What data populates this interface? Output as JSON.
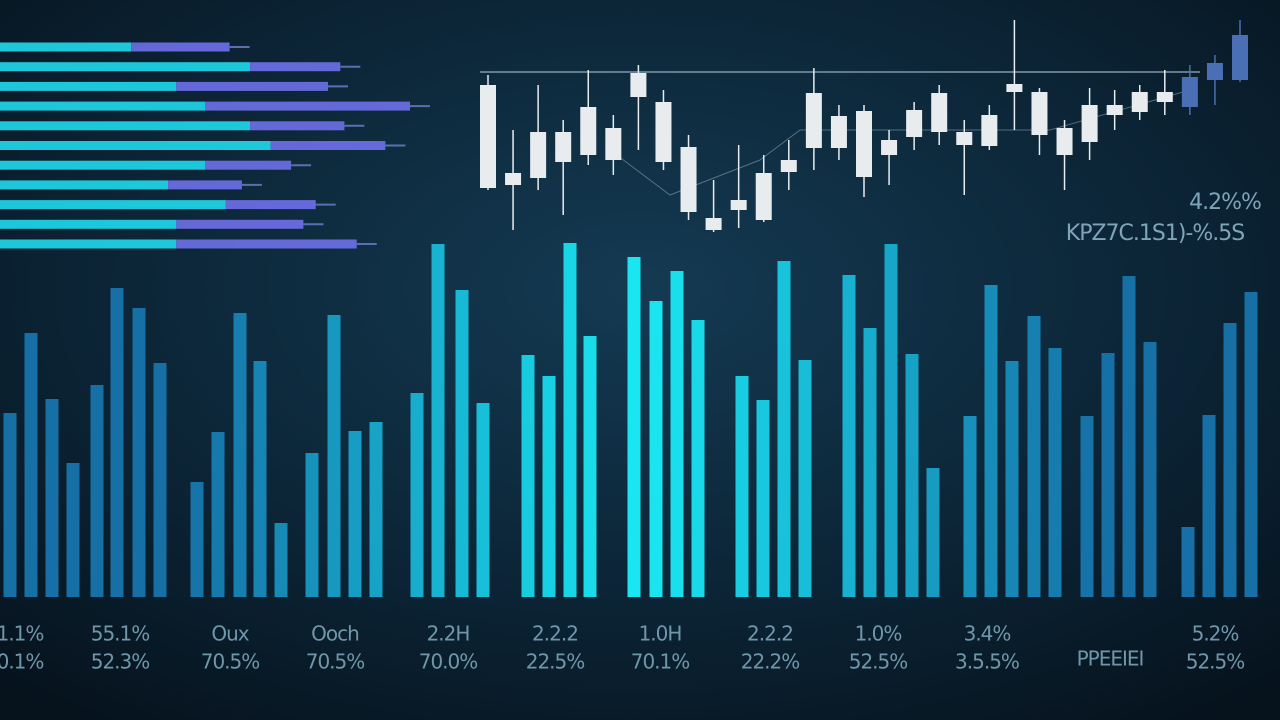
{
  "chart_data": [
    {
      "type": "hbar-stacked",
      "categories": [
        null,
        null,
        null,
        null,
        null,
        null,
        null,
        null,
        null,
        null,
        null
      ],
      "series": [
        {
          "name": null,
          "color": "#1fd6e8",
          "values": [
            32,
            61,
            43,
            50,
            61,
            66,
            50,
            41,
            55,
            43,
            43
          ]
        },
        {
          "name": null,
          "color": "#6c6fe6",
          "values": [
            24,
            22,
            37,
            50,
            23,
            28,
            21,
            18,
            22,
            31,
            44
          ]
        }
      ],
      "xlim": [
        0,
        100
      ]
    },
    {
      "type": "candlestick",
      "open": [
        42,
        45,
        52,
        68,
        75,
        70,
        133,
        68,
        18,
        0,
        20,
        10,
        58,
        82,
        82,
        53,
        75,
        93,
        98,
        85,
        84,
        138,
        95,
        75,
        88,
        115,
        118,
        128,
        123,
        150,
        150
      ],
      "close": [
        145,
        57,
        98,
        98,
        123,
        102,
        157,
        128,
        83,
        12,
        30,
        57,
        70,
        137,
        114,
        119,
        90,
        120,
        137,
        98,
        115,
        146,
        138,
        102,
        125,
        125,
        138,
        138,
        153,
        167,
        195
      ],
      "high": [
        155,
        100,
        145,
        110,
        160,
        115,
        165,
        140,
        95,
        50,
        85,
        75,
        90,
        162,
        125,
        125,
        100,
        128,
        145,
        110,
        125,
        210,
        142,
        110,
        142,
        140,
        145,
        160,
        165,
        175,
        210
      ],
      "low": [
        40,
        0,
        40,
        15,
        65,
        55,
        80,
        60,
        10,
        -2,
        2,
        8,
        40,
        60,
        70,
        33,
        45,
        80,
        85,
        35,
        80,
        100,
        75,
        40,
        70,
        100,
        110,
        115,
        115,
        125,
        148
      ],
      "colors": [
        "#e8ecef",
        "#e8ecef",
        "#e8ecef",
        "#e8ecef",
        "#e8ecef",
        "#e8ecef",
        "#e8ecef",
        "#e8ecef",
        "#e8ecef",
        "#e8ecef",
        "#e8ecef",
        "#e8ecef",
        "#e8ecef",
        "#e8ecef",
        "#e8ecef",
        "#e8ecef",
        "#e8ecef",
        "#e8ecef",
        "#e8ecef",
        "#e8ecef",
        "#e8ecef",
        "#e8ecef",
        "#e8ecef",
        "#e8ecef",
        "#e8ecef",
        "#e8ecef",
        "#e8ecef",
        "#e8ecef",
        "#4a6fb4",
        "#4a6fb4",
        "#4a6fb4"
      ],
      "ylim": [
        -10,
        210
      ],
      "annotations": [
        "4.2%%",
        "KPZ7C.1S1)-%.5S"
      ]
    },
    {
      "type": "bar",
      "x": [
        10,
        31,
        52,
        73,
        97,
        117,
        139,
        160,
        197,
        218,
        240,
        260,
        281,
        312,
        334,
        355,
        376,
        417,
        438,
        462,
        483,
        528,
        549,
        570,
        590,
        634,
        656,
        677,
        698,
        742,
        763,
        784,
        805,
        849,
        870,
        891,
        912,
        933,
        970,
        991,
        1012,
        1034,
        1055,
        1087,
        1108,
        1129,
        1150,
        1188,
        1209,
        1230,
        1251
      ],
      "values": [
        184,
        264,
        198,
        134,
        212,
        309,
        289,
        234,
        115,
        165,
        284,
        236,
        74,
        144,
        282,
        166,
        175,
        204,
        353,
        307,
        194,
        242,
        221,
        354,
        261,
        340,
        296,
        326,
        277,
        221,
        197,
        336,
        237,
        322,
        269,
        353,
        243,
        129,
        181,
        312,
        236,
        281,
        249,
        181,
        244,
        321,
        255,
        70,
        182,
        274,
        305
      ],
      "xlim": [
        0,
        1280
      ],
      "ylim": [
        0,
        360
      ],
      "color": "#19e8f2",
      "edge_color": "#1670a6",
      "labels": [
        [
          "1.1%",
          "0.1%"
        ],
        [
          "55.1%",
          "52.3%"
        ],
        [
          "Oux",
          "70.5%"
        ],
        [
          "Ooch",
          "70.5%"
        ],
        [
          "2.2H",
          "70.0%"
        ],
        [
          "2.2.2",
          "22.5%"
        ],
        [
          "1.0H",
          "70.1%"
        ],
        [
          "2.2.2",
          "22.2%"
        ],
        [
          "1.0%",
          "52.5%"
        ],
        [
          "3.4%",
          "3.5.5%"
        ],
        [
          "PPEEIEI"
        ],
        [
          "5.2%",
          "52.5%"
        ]
      ]
    }
  ]
}
